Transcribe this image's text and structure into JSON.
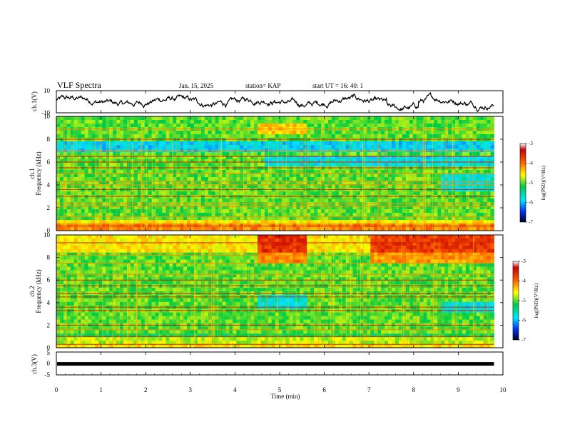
{
  "header": {
    "title": "VLF Spectra",
    "date": "Jan. 15, 2025",
    "station": "station= KAP",
    "start_time": "start  UT =   16: 40: 1"
  },
  "chart_data": {
    "type": "heatmap",
    "x_axis": {
      "label": "Time  (min)",
      "range": [
        0,
        10
      ],
      "ticks": [
        "0",
        "1",
        "2",
        "3",
        "4",
        "5",
        "6",
        "7",
        "8",
        "9",
        "10"
      ]
    },
    "ch1_waveform": {
      "ylabel": "ch.1(V)",
      "range": [
        -10,
        10
      ],
      "ticks": [
        "10",
        "-10"
      ]
    },
    "ch1_spectrogram": {
      "ylabel_line1": "ch.1",
      "ylabel_line2": "Frequency (kHz)",
      "range_khz": [
        0,
        10
      ],
      "ticks": [
        "0",
        "2",
        "4",
        "6",
        "8",
        "10"
      ],
      "colorbar": {
        "label": "log(PSD)(V²/Hz)",
        "range": [
          -7,
          -3
        ],
        "ticks": [
          "-3",
          "-4",
          "-5",
          "-6",
          "-7"
        ]
      },
      "lines_khz": [
        0.4,
        1.2,
        2.1,
        2.4,
        3.0,
        3.6,
        4.0,
        4.3,
        5.0,
        5.5,
        6.0,
        6.5,
        7.0,
        8.0,
        8.9
      ]
    },
    "ch2_spectrogram": {
      "ylabel_line1": "ch.2",
      "ylabel_line2": "Frequency (kHz)",
      "range_khz": [
        0,
        10
      ],
      "ticks": [
        "0",
        "2",
        "4",
        "6",
        "8",
        "10"
      ],
      "colorbar": {
        "label": "log(PSD)(V²/Hz)",
        "range": [
          -7,
          -3
        ],
        "ticks": [
          "-3",
          "-4",
          "-5",
          "-6",
          "-7"
        ]
      },
      "lines_khz": [
        0.3,
        1.0,
        1.6,
        2.0,
        3.3,
        3.6,
        4.5,
        4.8,
        5.5,
        6.0,
        6.5,
        7.5,
        8.2,
        9.3
      ]
    },
    "ch3_waveform": {
      "ylabel": "ch.3(V)",
      "range": [
        -5,
        5
      ],
      "ticks": [
        "5",
        "0",
        "-5"
      ],
      "level_v": -0.2
    },
    "colors": {
      "low": "#000080",
      "mid": "#00cc44",
      "high": "#cc0000"
    }
  }
}
